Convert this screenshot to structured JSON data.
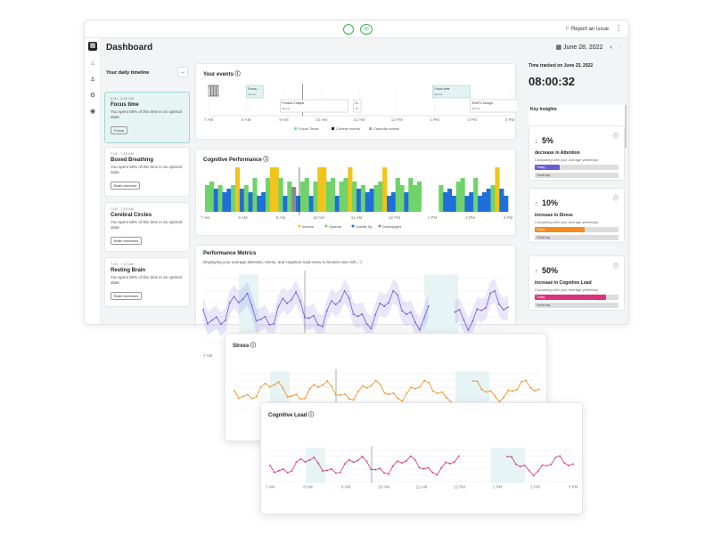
{
  "app": {
    "title": "Dashboard",
    "report_issue": "Report an issue",
    "pill_left": "",
    "pill_right": "03",
    "date": "June 28, 2022",
    "prev": "‹",
    "next": "›"
  },
  "timeline": {
    "title": "Your daily timeline",
    "add": "→",
    "items": [
      {
        "time": "8:00 - 8:30 AM",
        "name": "Focus time",
        "desc": "You spent 58% of this time in an optimal state.",
        "btn": "Focus"
      },
      {
        "time": "7:05 - 7:10 AM",
        "name": "Boxed Breathing",
        "desc": "You spent 58% of this time in an optimal state.",
        "btn": "Brain exercise"
      },
      {
        "time": "7:05 - 7:10 AM",
        "name": "Cerebral Circles",
        "desc": "You spent 58% of this time in an optimal state.",
        "btn": "Brain exercises"
      },
      {
        "time": "7:05 - 7:10 AM",
        "name": "Resting Brain",
        "desc": "You spent 58% of this time in an optimal state.",
        "btn": "Brain exercises"
      }
    ]
  },
  "events": {
    "title": "Your events",
    "blocks": [
      {
        "label": "Focus...",
        "sub": "30 min"
      },
      {
        "label": "Product Critique",
        "sub": "90 min"
      },
      {
        "label": "D...",
        "sub": "15..."
      },
      {
        "label": "Focus time",
        "sub": "60 min"
      },
      {
        "label": "EH6TV Design",
        "sub": "90 min"
      }
    ],
    "ticks": [
      "7 AM",
      "8 AM",
      "9 AM",
      "10 AM",
      "11 AM",
      "12 PM",
      "1 PM",
      "2 PM",
      "3 PM"
    ],
    "legend": [
      "Focus Times",
      "Cortese events",
      "Calendar events"
    ]
  },
  "cognitive": {
    "title": "Cognitive Performance",
    "ticks": [
      "7 AM",
      "8 AM",
      "9 AM",
      "10 AM",
      "11 AM",
      "12 PM",
      "1 PM",
      "2 PM",
      "3 PM"
    ],
    "legend": [
      "Intense",
      "Optimal",
      "Volatile flg",
      "Disengaged"
    ]
  },
  "metrics": {
    "title": "Performance Metrics",
    "subtitle": "Displaying your average attention, stress, and cognitive load every 5 minutes over 24h.",
    "tick_first": "7 AM"
  },
  "stress": {
    "title": "Stress"
  },
  "cogload": {
    "title": "Cognitive Load",
    "ticks": [
      "7 AM",
      "8 AM",
      "9 AM",
      "10 AM",
      "11 AM",
      "12 PM",
      "1 PM",
      "2 PM",
      "3 PM"
    ]
  },
  "tracked": {
    "label": "Time tracked on June 23, 2022",
    "value": "08:00:32"
  },
  "key": {
    "label": "Key Insights"
  },
  "insights": [
    {
      "arrow": "↓",
      "pct": "5%",
      "label": "decrease in Attention",
      "cmp": "Comparing with your average yesterday:",
      "today": "Today",
      "yesterday": "Yesterday",
      "today_frac": 0.3,
      "color": "#6b5bd6"
    },
    {
      "arrow": "↑",
      "pct": "10%",
      "label": "increase in Stress",
      "cmp": "Comparing with your average yesterday:",
      "today": "Today",
      "yesterday": "Yesterday",
      "today_frac": 0.6,
      "color": "#f28c1e"
    },
    {
      "arrow": "↑",
      "pct": "50%",
      "label": "increase in Cognitive Load",
      "cmp": "Comparing with your average yesterday:",
      "today": "Today",
      "yesterday": "Yesterday",
      "today_frac": 0.85,
      "color": "#d6337a"
    }
  ],
  "colors": {
    "intense": "#f0c419",
    "optimal": "#6fd36a",
    "volatile": "#1e6fd9",
    "disengaged": "#8a8a8a",
    "attention": "#6b5bd6",
    "stress": "#f28c1e",
    "load": "#d6337a"
  }
}
